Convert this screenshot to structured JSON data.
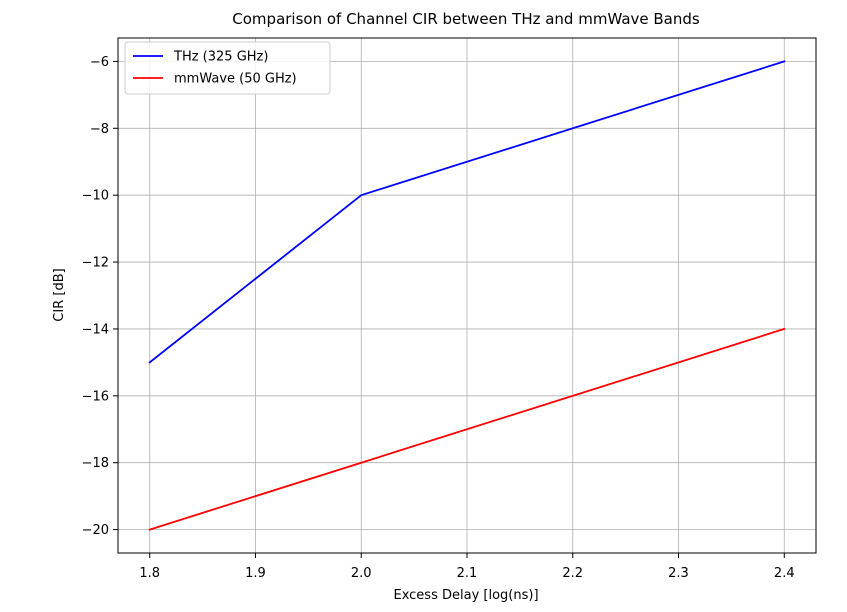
{
  "chart_data": {
    "type": "line",
    "title": "Comparison of Channel CIR between THz and mmWave Bands",
    "xlabel": "Excess Delay [log(ns)]",
    "ylabel": "CIR [dB]",
    "xlim": [
      1.77,
      2.43
    ],
    "ylim": [
      -20.7,
      -5.3
    ],
    "xticks": [
      1.8,
      1.9,
      2.0,
      2.1,
      2.2,
      2.3,
      2.4
    ],
    "xtick_labels": [
      "1.8",
      "1.9",
      "2.0",
      "2.1",
      "2.2",
      "2.3",
      "2.4"
    ],
    "yticks": [
      -20,
      -18,
      -16,
      -14,
      -12,
      -10,
      -8,
      -6
    ],
    "ytick_labels": [
      "−20",
      "−18",
      "−16",
      "−14",
      "−12",
      "−10",
      "−8",
      "−6"
    ],
    "grid": true,
    "legend_position": "top-left",
    "series": [
      {
        "name": "THz (325 GHz)",
        "color": "#0000ff",
        "x": [
          1.8,
          2.0,
          2.4
        ],
        "y": [
          -15,
          -10,
          -6
        ]
      },
      {
        "name": "mmWave (50 GHz)",
        "color": "#ff0000",
        "x": [
          1.8,
          2.0,
          2.4
        ],
        "y": [
          -20,
          -18,
          -14
        ]
      }
    ]
  }
}
